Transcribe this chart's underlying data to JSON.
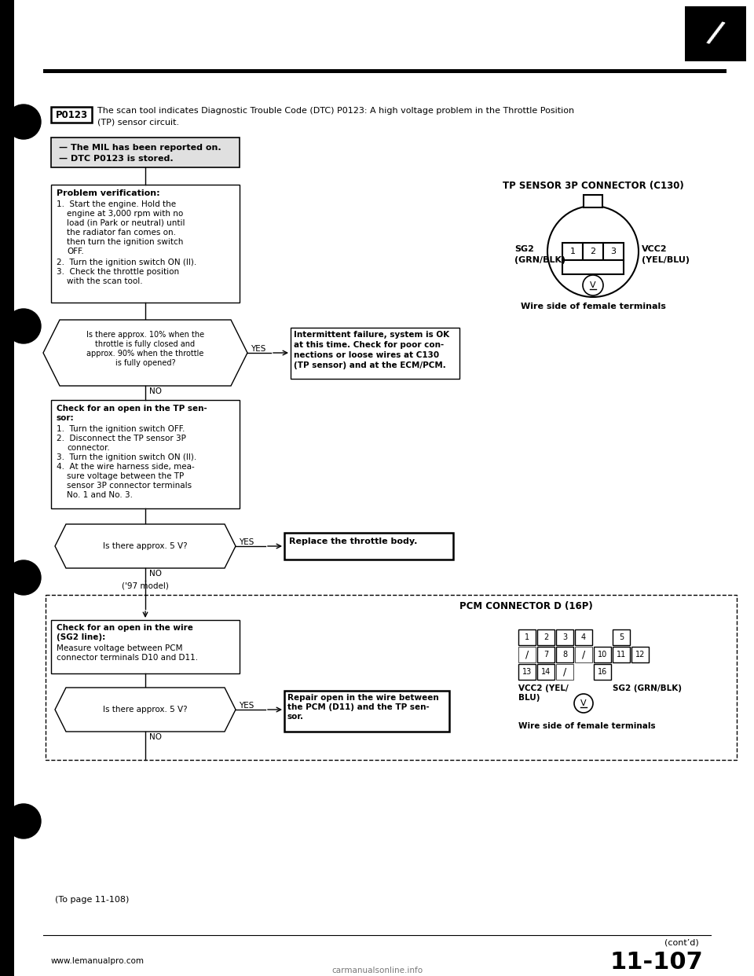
{
  "bg_color": "#ffffff",
  "title_dtc": "P0123",
  "title_line1": "The scan tool indicates Diagnostic Trouble Code (DTC) P0123: A high voltage problem in the Throttle Position",
  "title_line2": "(TP) sensor circuit.",
  "mil_line1": "— The MIL has been reported on.",
  "mil_line2": "— DTC P0123 is stored.",
  "prob_title": "Problem verification:",
  "prob_step1a": "1.  Start the engine. Hold the",
  "prob_step1b": "engine at 3,000 rpm with no",
  "prob_step1c": "load (in Park or neutral) until",
  "prob_step1d": "the radiator fan comes on.",
  "prob_step1e": "then turn the ignition switch",
  "prob_step1f": "OFF.",
  "prob_step2": "2.  Turn the ignition switch ON (II).",
  "prob_step3a": "3.  Check the throttle position",
  "prob_step3b": "with the scan tool.",
  "d1_line1": "Is there approx. 10% when the",
  "d1_line2": "throttle is fully closed and",
  "d1_line3": "approx. 90% when the throttle",
  "d1_line4": "is fully opened?",
  "yes_label": "YES",
  "no_label": "NO",
  "interm_line1": "Intermittent failure, system is OK",
  "interm_line2": "at this time. Check for poor con-",
  "interm_line3": "nections or loose wires at C130",
  "interm_line4": "(TP sensor) and at the ECM/PCM.",
  "check_title": "Check for an open in the TP sen-",
  "check_title2": "sor:",
  "check_s1": "1.  Turn the ignition switch OFF.",
  "check_s2a": "2.  Disconnect the TP sensor 3P",
  "check_s2b": "connector.",
  "check_s3": "3.  Turn the ignition switch ON (II).",
  "check_s4a": "4.  At the wire harness side, mea-",
  "check_s4b": "sure voltage between the TP",
  "check_s4c": "sensor 3P connector terminals",
  "check_s4d": "No. 1 and No. 3.",
  "d2_text": "Is there approx. 5 V?",
  "replace_text": "Replace the throttle body.",
  "model97": "('97 model)",
  "sg2_check_t1": "Check for an open in the wire",
  "sg2_check_t2": "(SG2 line):",
  "sg2_check_b1": "Measure voltage between PCM",
  "sg2_check_b2": "connector terminals D10 and D11.",
  "d3_text": "Is there approx. 5 V?",
  "repair_t1": "Repair open in the wire between",
  "repair_t2": "the PCM (D11) and the TP sen-",
  "repair_t3": "sor.",
  "tp_title": "TP SENSOR 3P CONNECTOR (C130)",
  "sg2_lbl1": "SG2",
  "sg2_lbl2": "(GRN/BLK)",
  "vcc2_lbl1": "VCC2",
  "vcc2_lbl2": "(YEL/BLU)",
  "wire_side": "Wire side of female terminals",
  "pcm_title": "PCM CONNECTOR D (16P)",
  "vcc2_pcm": "VCC2 (YEL/",
  "blu_pcm": "BLU)",
  "sg2_pcm": "SG2 (GRN/BLK)",
  "wire_side2": "Wire side of female terminals",
  "to_page": "(To page 11-108)",
  "contd": "(cont’d)",
  "page_num": "11-107",
  "website": "www.lemanualpro.com",
  "watermark": "carmanualsonline.info",
  "black": "#000000",
  "white": "#ffffff",
  "gray_bg": "#e0e0e0"
}
